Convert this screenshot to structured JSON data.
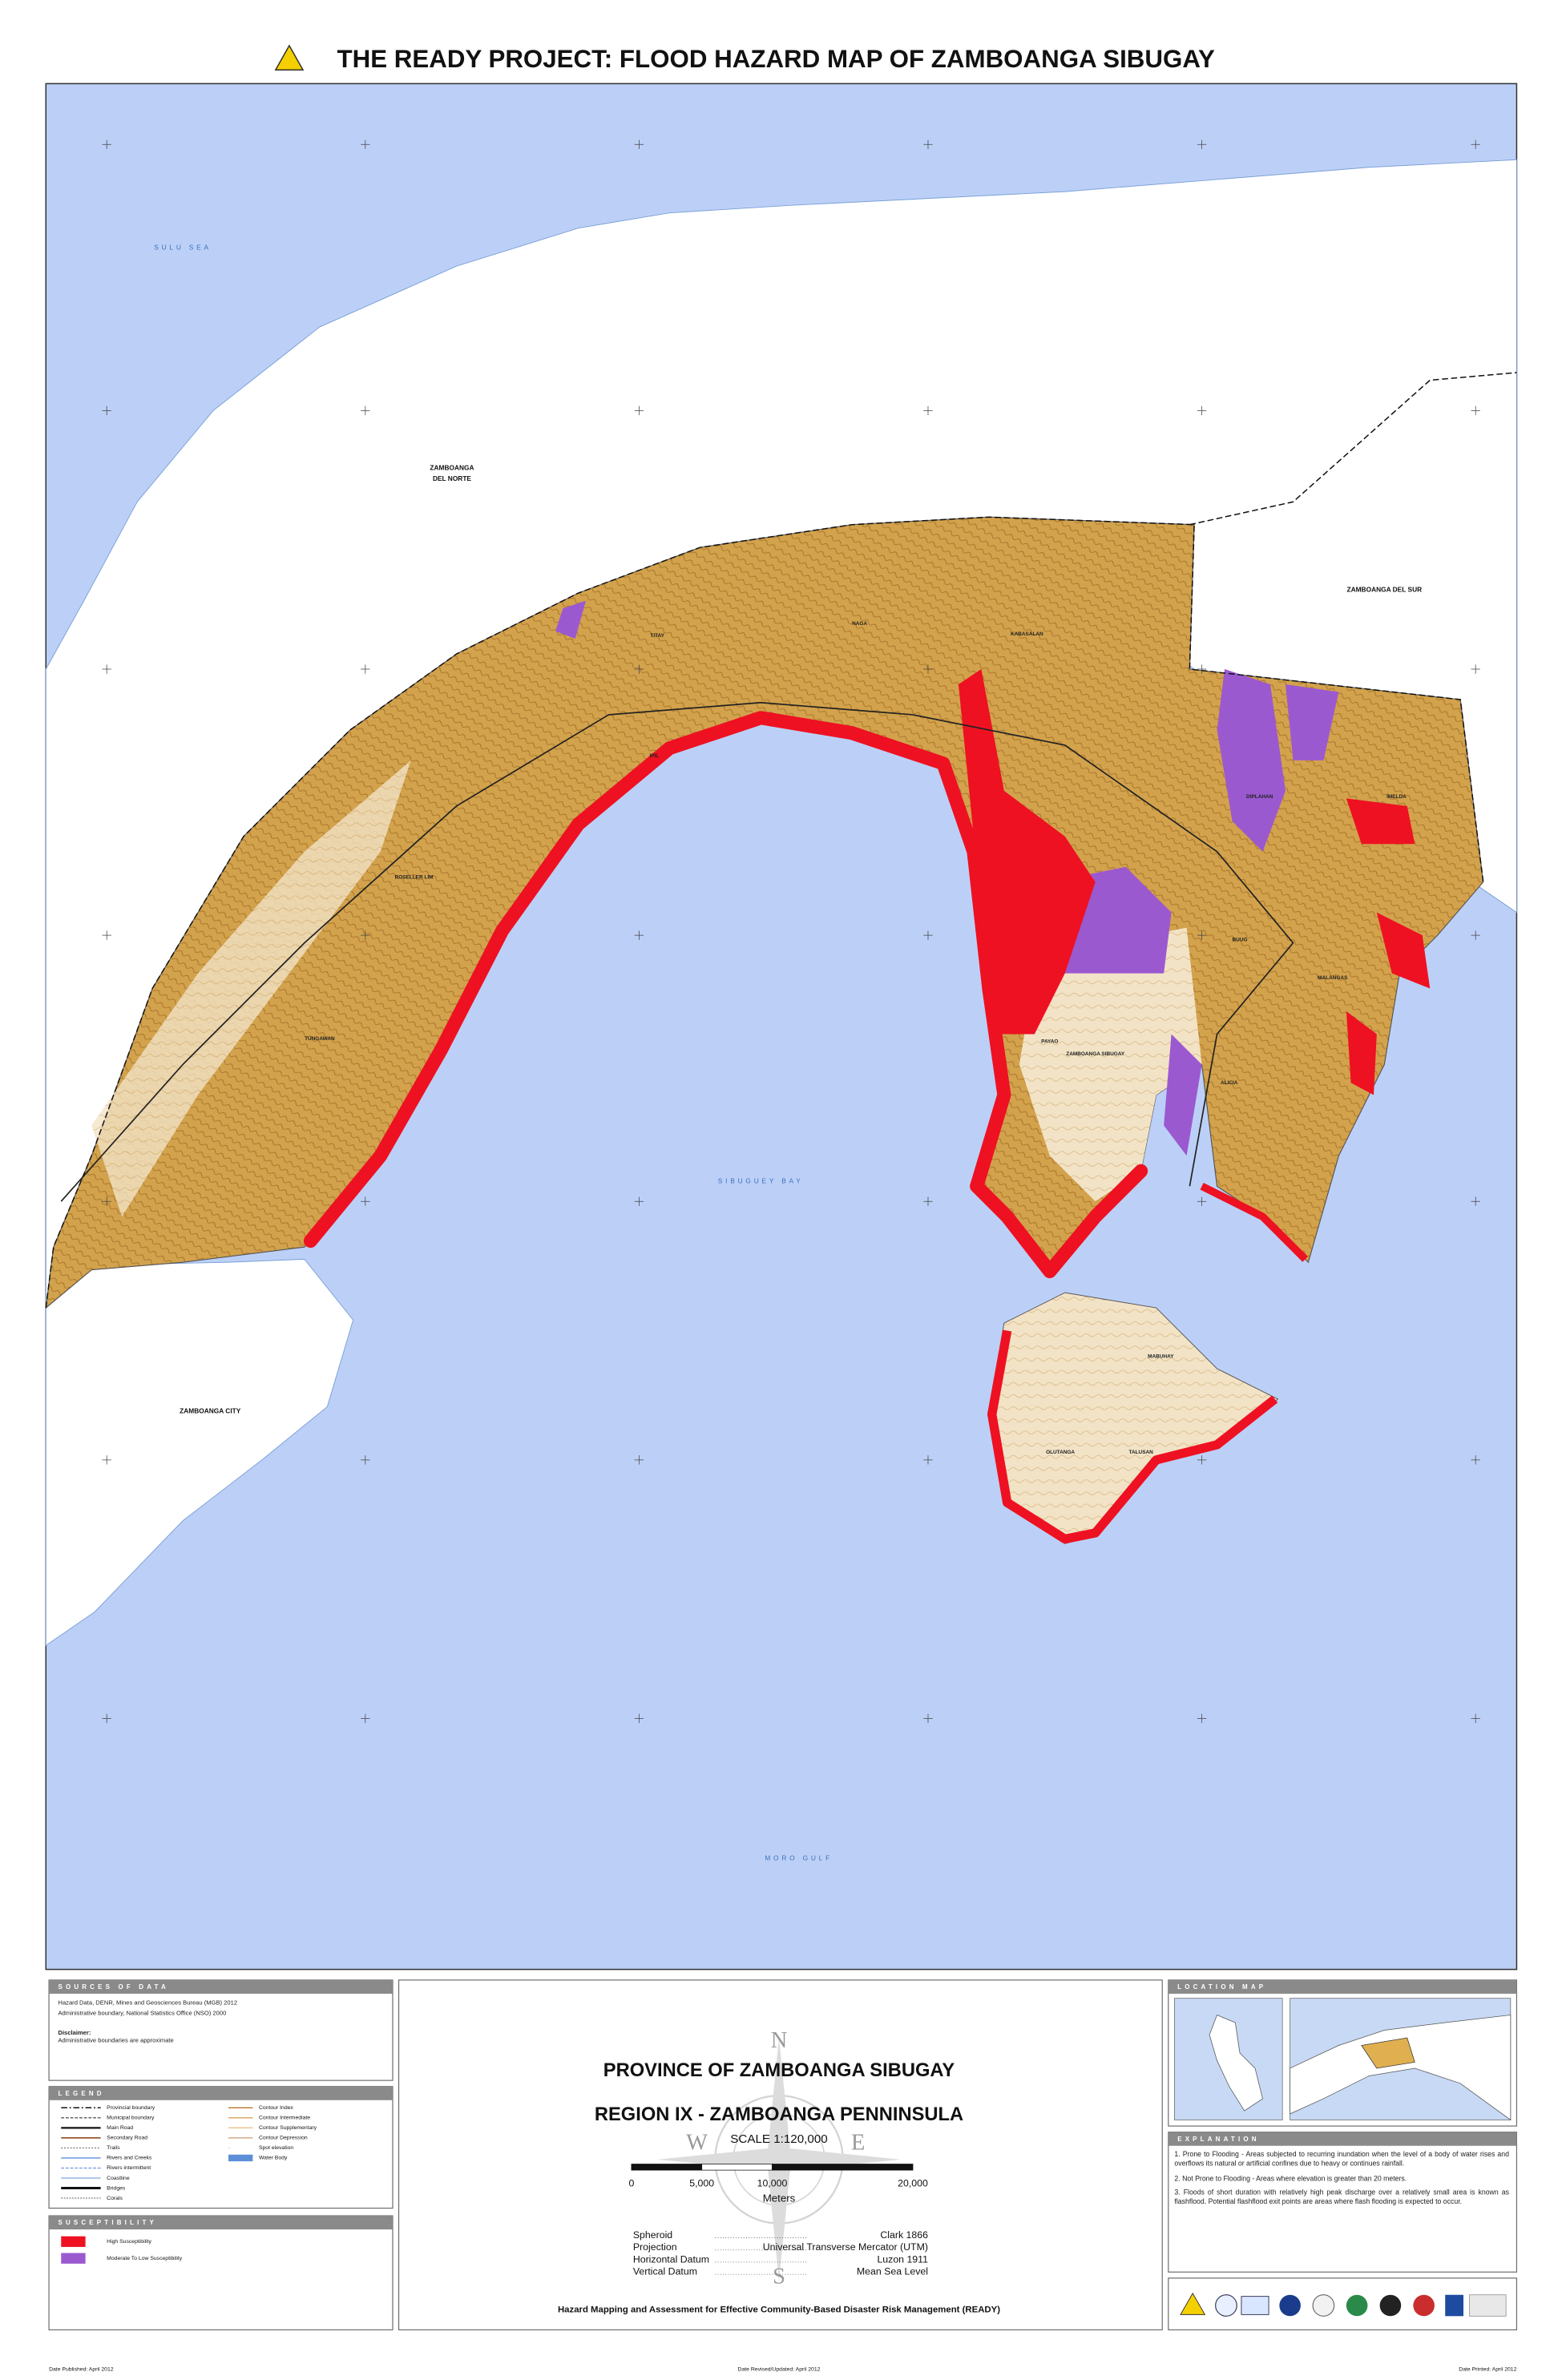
{
  "header": {
    "title": "THE READY PROJECT: FLOOD HAZARD MAP OF ZAMBOANGA SIBUGAY"
  },
  "map": {
    "labels": [
      "SULU SEA",
      "ZAMBOANGA",
      "DEL NORTE",
      "ZAMBOANGA DEL SUR",
      "ZAMBOANGA CITY",
      "SIBUGUEY BAY",
      "MORO GULF",
      "NAGA",
      "KABASALAN",
      "TITAY",
      "IPIL",
      "ROSELLER LIM",
      "TUNGAWAN",
      "DIPLAHAN",
      "IMELDA",
      "BUUG",
      "MALANGAS",
      "PAYAO",
      "ZAMBOANGA SIBUGAY",
      "ALICIA",
      "MABUHAY",
      "OLUTANGA",
      "TALUSAN"
    ]
  },
  "sources": {
    "heading": "SOURCES OF DATA",
    "lines": [
      "Hazard Data, DENR, Mines and Geosciences Bureau (MGB) 2012",
      "Administrative boundary, National Statistics Office (NSO) 2000"
    ],
    "disclaimer_title": "Disclaimer:",
    "disclaimer": "Administrative boundaries are approximate"
  },
  "legend": {
    "heading": "LEGEND",
    "left": [
      "Provincial boundary",
      "Municipal boundary",
      "Main Road",
      "Secondary Road",
      "Trails",
      "Rivers and Creeks",
      "Rivers intermittent",
      "Coastline",
      "Bridges",
      "Corals"
    ],
    "right": [
      "Contour Index",
      "Contour Intermediate",
      "Contour Supplementary",
      "Contour Depression",
      "Spot elevation",
      "Water Body"
    ]
  },
  "susceptibility": {
    "heading": "SUSCEPTIBILITY",
    "items": [
      "High Susceptibility",
      "Moderate To Low Susceptibility"
    ]
  },
  "title_block": {
    "province": "PROVINCE OF ZAMBOANGA SIBUGAY",
    "region": "REGION IX - ZAMBOANGA PENNINSULA",
    "scale": "SCALE 1:120,000",
    "scale_ticks": [
      "0",
      "5,000",
      "10,000",
      "20,000"
    ],
    "scale_unit": "Meters",
    "compass": [
      "N",
      "E",
      "S",
      "W"
    ],
    "datum": [
      {
        "label": "Spheroid",
        "value": "Clark 1866"
      },
      {
        "label": "Projection",
        "value": "Universal Transverse Mercator (UTM)"
      },
      {
        "label": "Horizontal Datum",
        "value": "Luzon 1911"
      },
      {
        "label": "Vertical Datum",
        "value": "Mean Sea Level"
      }
    ],
    "footer": "Hazard Mapping and Assessment for Effective Community-Based Disaster Risk Management  (READY)"
  },
  "location_map": {
    "heading": "LOCATION MAP"
  },
  "explanation": {
    "heading": "EXPLANATION",
    "items": [
      "1. Prone to Flooding - Areas subjected to recurring inundation when the level of a body of water rises and overflows its natural or artificial confines due to heavy or continues rainfall.",
      "2. Not Prone to Flooding - Areas where elevation is greater than 20 meters.",
      "3. Floods of short duration with relatively high peak discharge over a relatively small area is known as flashflood. Potential flashflood exit points are areas where flash flooding is expected to occur."
    ]
  },
  "dates": [
    "Date Published: April 2012",
    "Date Revised/Updated: April 2012",
    "Date Printed: April 2012"
  ]
}
